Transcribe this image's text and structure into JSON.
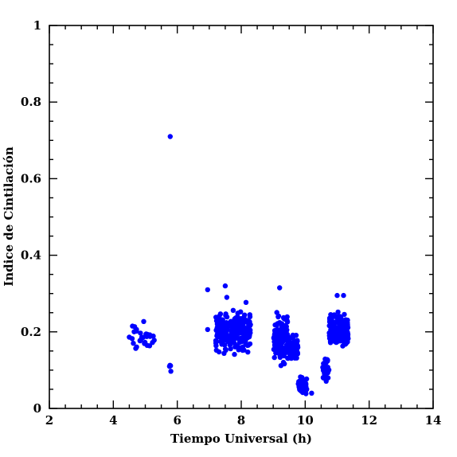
{
  "chart_data": {
    "type": "scatter",
    "title": "",
    "xlabel": "Tiempo Universal (h)",
    "ylabel": "Indice de Cintilación",
    "xlim": [
      2,
      14
    ],
    "ylim": [
      0,
      1
    ],
    "x_ticks": [
      "2",
      "4",
      "6",
      "8",
      "10",
      "12",
      "14"
    ],
    "y_ticks": [
      "0",
      "0.2",
      "0.4",
      "0.6",
      "0.8",
      "1"
    ],
    "grid": false,
    "legend": "none",
    "marker_color": "#0000ff",
    "clusters": [
      {
        "x_range": [
          4.5,
          5.3
        ],
        "y_range": [
          0.13,
          0.23
        ],
        "count": 25
      },
      {
        "x_range": [
          5.75,
          5.82
        ],
        "y_range": [
          0.1,
          0.12
        ],
        "count": 3
      },
      {
        "x_range": [
          7.2,
          8.3
        ],
        "y_range": [
          0.13,
          0.27
        ],
        "count": 230
      },
      {
        "x_range": [
          9.0,
          9.45
        ],
        "y_range": [
          0.1,
          0.27
        ],
        "count": 110
      },
      {
        "x_range": [
          9.4,
          9.78
        ],
        "y_range": [
          0.12,
          0.2
        ],
        "count": 90
      },
      {
        "x_range": [
          9.78,
          10.05
        ],
        "y_range": [
          0.03,
          0.09
        ],
        "count": 45
      },
      {
        "x_range": [
          10.55,
          10.75
        ],
        "y_range": [
          0.06,
          0.14
        ],
        "count": 40
      },
      {
        "x_range": [
          10.75,
          11.35
        ],
        "y_range": [
          0.14,
          0.26
        ],
        "count": 170
      }
    ],
    "points": [
      [
        5.78,
        0.71
      ],
      [
        7.5,
        0.32
      ],
      [
        9.2,
        0.315
      ],
      [
        6.95,
        0.31
      ],
      [
        11.0,
        0.295
      ],
      [
        11.2,
        0.295
      ],
      [
        7.55,
        0.29
      ],
      [
        8.15,
        0.277
      ],
      [
        4.95,
        0.227
      ],
      [
        6.95,
        0.206
      ],
      [
        10.2,
        0.04
      ],
      [
        4.5,
        0.186
      ],
      [
        4.6,
        0.215
      ],
      [
        5.15,
        0.188
      ],
      [
        5.25,
        0.189
      ],
      [
        5.8,
        0.097
      ]
    ]
  }
}
